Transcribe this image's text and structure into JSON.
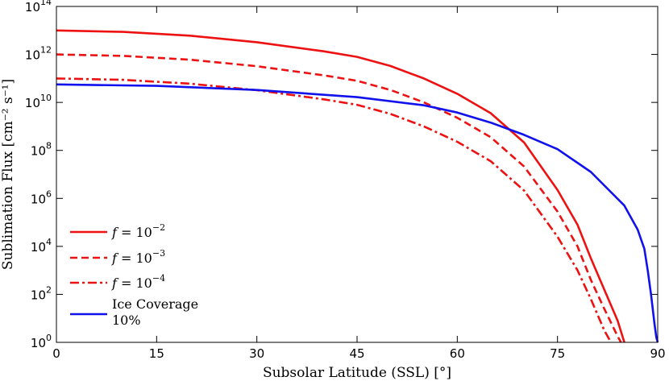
{
  "chart_data": {
    "type": "line",
    "xlabel": "Subsolar Latitude (SSL) [°]",
    "ylabel": "Sublimation Flux [cm⁻² s⁻¹]",
    "xlim": [
      0,
      90
    ],
    "ylim_log10": [
      0,
      14
    ],
    "yscale": "log",
    "xticks": [
      0,
      15,
      30,
      45,
      60,
      75,
      90
    ],
    "xtick_labels": [
      "0",
      "15",
      "30",
      "45",
      "60",
      "75",
      "90"
    ],
    "yticks_exp": [
      0,
      2,
      4,
      6,
      8,
      10,
      12,
      14
    ],
    "ytick_labels": [
      {
        "base": "10",
        "exp": "0"
      },
      {
        "base": "10",
        "exp": "2"
      },
      {
        "base": "10",
        "exp": "4"
      },
      {
        "base": "10",
        "exp": "6"
      },
      {
        "base": "10",
        "exp": "8"
      },
      {
        "base": "10",
        "exp": "10"
      },
      {
        "base": "10",
        "exp": "12"
      },
      {
        "base": "10",
        "exp": "14"
      }
    ],
    "legend_placement": "lower-left",
    "series": [
      {
        "name": "f = 10⁻²",
        "legend": {
          "prefix": "f",
          "text": " = 10",
          "exp": "−2"
        },
        "color": "#ee1111",
        "dash": "solid",
        "x": [
          0,
          10,
          20,
          30,
          40,
          45,
          50,
          55,
          60,
          65,
          70,
          75,
          78,
          80,
          82,
          84,
          85
        ],
        "log10_y": [
          13.0,
          12.94,
          12.78,
          12.51,
          12.13,
          11.9,
          11.52,
          11.0,
          10.36,
          9.55,
          8.33,
          6.35,
          4.9,
          3.5,
          2.2,
          0.9,
          0
        ]
      },
      {
        "name": "f = 10⁻³",
        "legend": {
          "prefix": "f",
          "text": " = 10",
          "exp": "−3"
        },
        "color": "#ee1111",
        "dash": "dashed",
        "x": [
          0,
          10,
          20,
          30,
          40,
          45,
          50,
          55,
          60,
          65,
          70,
          75,
          78,
          80,
          82,
          84,
          84.5
        ],
        "log10_y": [
          12.0,
          11.94,
          11.78,
          11.51,
          11.13,
          10.9,
          10.52,
          10.0,
          9.36,
          8.55,
          7.33,
          5.45,
          4.0,
          2.6,
          1.4,
          0.25,
          0
        ]
      },
      {
        "name": "f = 10⁻⁴",
        "legend": {
          "prefix": "f",
          "text": " = 10",
          "exp": "−4"
        },
        "color": "#ee1111",
        "dash": "dashdot",
        "x": [
          0,
          10,
          20,
          30,
          40,
          45,
          50,
          55,
          60,
          65,
          70,
          75,
          78,
          80,
          82,
          83
        ],
        "log10_y": [
          11.0,
          10.94,
          10.78,
          10.51,
          10.13,
          9.9,
          9.52,
          9.0,
          8.36,
          7.55,
          6.33,
          4.4,
          3.0,
          1.8,
          0.5,
          0
        ]
      },
      {
        "name": "Ice Coverage 10%",
        "legend": {
          "prefix": "",
          "text": "Ice Coverage",
          "line2": "10%"
        },
        "color": "#1111ee",
        "dash": "solid",
        "x": [
          0,
          15,
          30,
          45,
          55,
          60,
          65,
          70,
          75,
          80,
          85,
          87,
          88,
          88.5,
          89,
          89.5,
          89.8,
          90
        ],
        "log10_y": [
          10.75,
          10.69,
          10.52,
          10.22,
          9.88,
          9.58,
          9.16,
          8.65,
          8.05,
          7.1,
          5.7,
          4.7,
          3.9,
          3.0,
          2.0,
          0.8,
          0.2,
          0
        ]
      }
    ]
  }
}
